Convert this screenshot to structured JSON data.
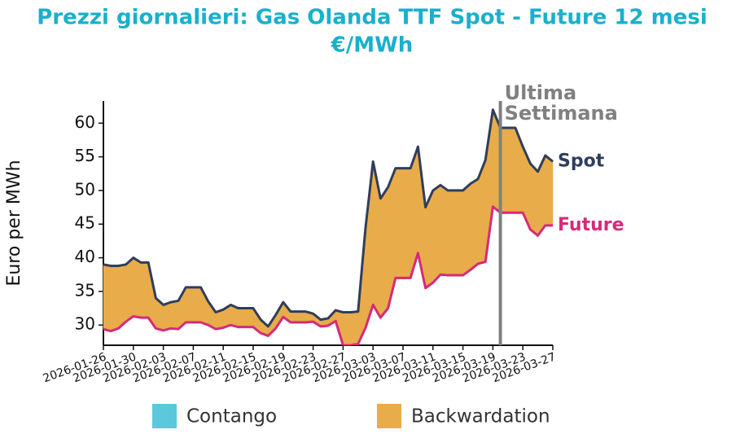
{
  "chart_data": {
    "type": "line",
    "title": "Prezzi giornalieri: Gas Olanda TTF Spot - Future 12 mesi",
    "subtitle": "€/MWh",
    "ylabel": "Euro per MWh",
    "x": [
      "2026-01-26",
      "2026-01-27",
      "2026-01-28",
      "2026-01-29",
      "2026-01-30",
      "2026-01-31",
      "2026-02-01",
      "2026-02-02",
      "2026-02-03",
      "2026-02-04",
      "2026-02-05",
      "2026-02-06",
      "2026-02-07",
      "2026-02-08",
      "2026-02-09",
      "2026-02-10",
      "2026-02-11",
      "2026-02-12",
      "2026-02-13",
      "2026-02-14",
      "2026-02-15",
      "2026-02-16",
      "2026-02-17",
      "2026-02-18",
      "2026-02-19",
      "2026-02-20",
      "2026-02-21",
      "2026-02-22",
      "2026-02-23",
      "2026-02-24",
      "2026-02-25",
      "2026-02-26",
      "2026-02-27",
      "2026-02-28",
      "2026-03-01",
      "2026-03-02",
      "2026-03-03",
      "2026-03-04",
      "2026-03-05",
      "2026-03-06",
      "2026-03-07",
      "2026-03-08",
      "2026-03-09",
      "2026-03-10",
      "2026-03-11",
      "2026-03-12",
      "2026-03-13",
      "2026-03-14",
      "2026-03-15",
      "2026-03-16",
      "2026-03-17",
      "2026-03-18",
      "2026-03-19",
      "2026-03-20",
      "2026-03-21",
      "2026-03-22",
      "2026-03-23",
      "2026-03-24",
      "2026-03-25",
      "2026-03-26",
      "2026-03-27"
    ],
    "series": [
      {
        "name": "Spot",
        "color": "#2e3e5c",
        "values": [
          39.0,
          38.8,
          38.8,
          39.0,
          40.0,
          39.3,
          39.3,
          34.0,
          33.0,
          33.4,
          33.6,
          35.6,
          35.6,
          35.6,
          33.5,
          31.9,
          32.3,
          33.0,
          32.5,
          32.5,
          32.5,
          30.8,
          29.8,
          31.5,
          33.4,
          32.0,
          32.0,
          32.0,
          31.7,
          30.8,
          31.0,
          32.2,
          31.9,
          31.9,
          32.0,
          44.5,
          54.3,
          48.8,
          50.5,
          53.3,
          53.3,
          53.3,
          56.5,
          47.5,
          50.0,
          50.8,
          50.0,
          50.0,
          50.0,
          51.0,
          51.7,
          54.5,
          62.0,
          59.3,
          59.3,
          59.3,
          56.5,
          54.0,
          52.8,
          55.2,
          54.3
        ]
      },
      {
        "name": "Future",
        "color": "#d62a7a",
        "values": [
          29.4,
          29.1,
          29.5,
          30.5,
          31.3,
          31.1,
          31.1,
          29.5,
          29.2,
          29.5,
          29.4,
          30.4,
          30.4,
          30.4,
          30.0,
          29.4,
          29.6,
          30.0,
          29.7,
          29.7,
          29.7,
          28.8,
          28.4,
          29.5,
          31.2,
          30.4,
          30.4,
          30.4,
          30.5,
          29.8,
          29.9,
          30.6,
          27.0,
          27.0,
          27.2,
          29.6,
          33.0,
          31.1,
          32.5,
          37.0,
          37.0,
          37.0,
          40.7,
          35.5,
          36.3,
          37.5,
          37.4,
          37.4,
          37.4,
          38.2,
          39.1,
          39.4,
          47.6,
          46.7,
          46.7,
          46.7,
          46.7,
          44.2,
          43.3,
          44.8,
          44.8
        ]
      }
    ],
    "fill_legend": [
      {
        "name": "Contango",
        "color": "#5bc8dc"
      },
      {
        "name": "Backwardation",
        "color": "#e8ac4a"
      }
    ],
    "annotations": [
      {
        "x": "2026-03-20",
        "text": "Ultima Settimana",
        "color": "#808080"
      }
    ],
    "xlim": [
      "2026-01-26",
      "2026-03-27"
    ],
    "xticks": [
      "2026-01-26",
      "2026-01-30",
      "2026-02-03",
      "2026-02-07",
      "2026-02-11",
      "2026-02-15",
      "2026-02-19",
      "2026-02-23",
      "2026-02-27",
      "2026-03-03",
      "2026-03-07",
      "2026-03-11",
      "2026-03-15",
      "2026-03-19",
      "2026-03-23",
      "2026-03-27"
    ],
    "ylim": [
      27,
      63.3
    ],
    "yticks": [
      30,
      35,
      40,
      45,
      50,
      55,
      60
    ],
    "grid": false
  }
}
